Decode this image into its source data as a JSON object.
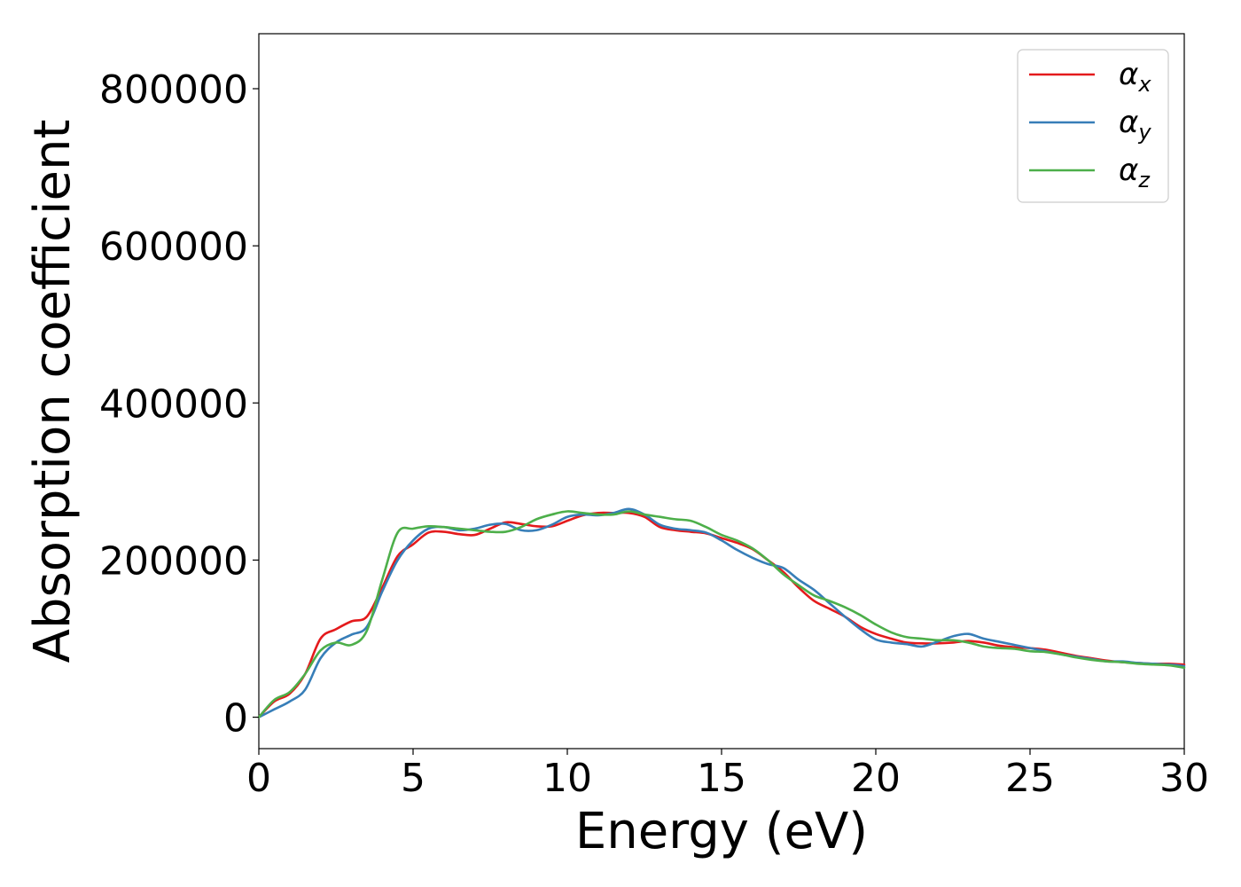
{
  "chart_data": {
    "type": "line",
    "xlabel": "Energy (eV)",
    "ylabel": "Absorption coefficient",
    "xlim": [
      0,
      30
    ],
    "ylim": [
      -40000,
      870000
    ],
    "xticks": [
      0,
      5,
      10,
      15,
      20,
      25,
      30
    ],
    "yticks": [
      0,
      200000,
      400000,
      600000,
      800000
    ],
    "grid": false,
    "legend_position": "top-right",
    "x": [
      0,
      0.5,
      1,
      1.5,
      2,
      2.5,
      3,
      3.5,
      4,
      4.5,
      5,
      5.5,
      6,
      6.5,
      7,
      7.5,
      8,
      8.5,
      9,
      9.5,
      10,
      10.5,
      11,
      11.5,
      12,
      12.5,
      13,
      13.5,
      14,
      14.5,
      15,
      15.5,
      16,
      16.5,
      17,
      17.5,
      18,
      18.5,
      19,
      19.5,
      20,
      20.5,
      21,
      21.5,
      22,
      22.5,
      23,
      23.5,
      24,
      24.5,
      25,
      25.5,
      26,
      26.5,
      27,
      27.5,
      28,
      28.5,
      29,
      29.5,
      30
    ],
    "series": [
      {
        "name": "α",
        "subscript": "x",
        "color": "#e41a1c",
        "values": [
          0,
          20000,
          30000,
          55000,
          100000,
          112000,
          122000,
          128000,
          165000,
          205000,
          220000,
          235000,
          236000,
          233000,
          232000,
          240000,
          248000,
          246000,
          243000,
          243000,
          250000,
          257000,
          260000,
          260000,
          260000,
          255000,
          242000,
          238000,
          236000,
          234000,
          228000,
          222000,
          214000,
          200000,
          185000,
          165000,
          148000,
          138000,
          128000,
          115000,
          106000,
          100000,
          95000,
          94000,
          94000,
          95000,
          97000,
          95000,
          91000,
          89000,
          88000,
          86000,
          82000,
          78000,
          75000,
          72000,
          70000,
          69000,
          68000,
          68000,
          67000
        ]
      },
      {
        "name": "α",
        "subscript": "y",
        "color": "#377eb8",
        "values": [
          0,
          10000,
          20000,
          35000,
          75000,
          95000,
          105000,
          115000,
          160000,
          200000,
          225000,
          240000,
          242000,
          238000,
          240000,
          245000,
          246000,
          238000,
          238000,
          245000,
          255000,
          258000,
          257000,
          260000,
          265000,
          258000,
          245000,
          240000,
          238000,
          235000,
          225000,
          213000,
          203000,
          195000,
          190000,
          175000,
          162000,
          145000,
          128000,
          112000,
          99000,
          95000,
          93000,
          90000,
          96000,
          103000,
          106000,
          100000,
          96000,
          92000,
          88000,
          84000,
          80000,
          77000,
          74000,
          71000,
          71000,
          69000,
          68000,
          67000,
          65000
        ]
      },
      {
        "name": "α",
        "subscript": "z",
        "color": "#4daf4a",
        "values": [
          0,
          22000,
          32000,
          55000,
          85000,
          95000,
          92000,
          110000,
          175000,
          235000,
          240000,
          243000,
          242000,
          240000,
          238000,
          236000,
          236000,
          242000,
          252000,
          258000,
          262000,
          260000,
          258000,
          258000,
          262000,
          258000,
          255000,
          252000,
          250000,
          242000,
          232000,
          225000,
          215000,
          200000,
          182000,
          168000,
          155000,
          148000,
          140000,
          130000,
          118000,
          108000,
          102000,
          100000,
          98000,
          98000,
          95000,
          90000,
          88000,
          87000,
          84000,
          83000,
          80000,
          76000,
          73000,
          71000,
          70000,
          68000,
          67000,
          66000,
          63000
        ]
      }
    ]
  }
}
